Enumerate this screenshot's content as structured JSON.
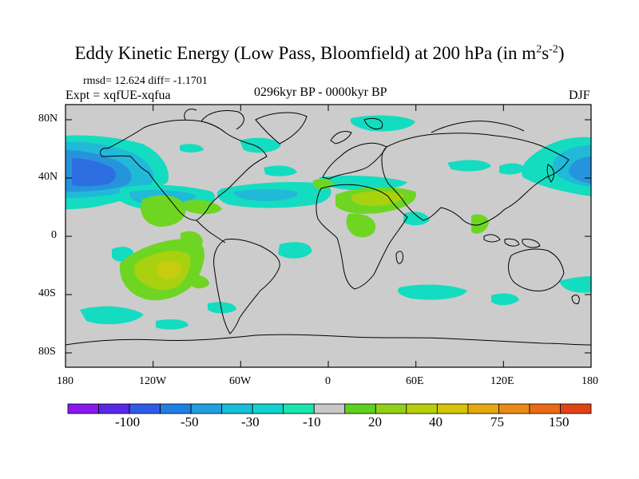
{
  "title_main": "Eddy Kinetic Energy (Low Pass, Bloomfield) at 200 hPa (in m",
  "title_sup1": "2",
  "title_mid": "s",
  "title_sup2": "-2",
  "title_end": ")",
  "stats": "rmsd= 12.624 diff= -1.1701",
  "experiment": "Expt = xqfUE-xqfua",
  "period": "0296kyr BP - 0000kyr BP",
  "season": "DJF",
  "lat_labels": [
    "80N",
    "40N",
    "0",
    "40S",
    "80S"
  ],
  "lon_labels": [
    "180",
    "120W",
    "60W",
    "0",
    "60E",
    "120E",
    "180"
  ],
  "colorbar": {
    "colors": [
      "#8a16f0",
      "#5a28e8",
      "#2f5ce6",
      "#1f7fe4",
      "#229fde",
      "#19bdd8",
      "#12d3cf",
      "#1ae6b0",
      "#c8c8c8",
      "#5ed11e",
      "#92d016",
      "#b8cf0e",
      "#d4c40a",
      "#e4a812",
      "#ea8a16",
      "#ea6a18",
      "#e24216"
    ],
    "labels": [
      "-100",
      "-50",
      "-30",
      "-10",
      "20",
      "40",
      "75",
      "150"
    ]
  },
  "map_colors": {
    "background": "#cccccc",
    "neg_light": "#14dcc0",
    "neg_mid": "#21b9d8",
    "neg_strong": "#2594dc",
    "neg_deep": "#2d6fe0",
    "pos_light": "#6ed622",
    "pos_mid": "#a8d10f",
    "pos_strong": "#c8cc10",
    "coast": "#000000"
  }
}
